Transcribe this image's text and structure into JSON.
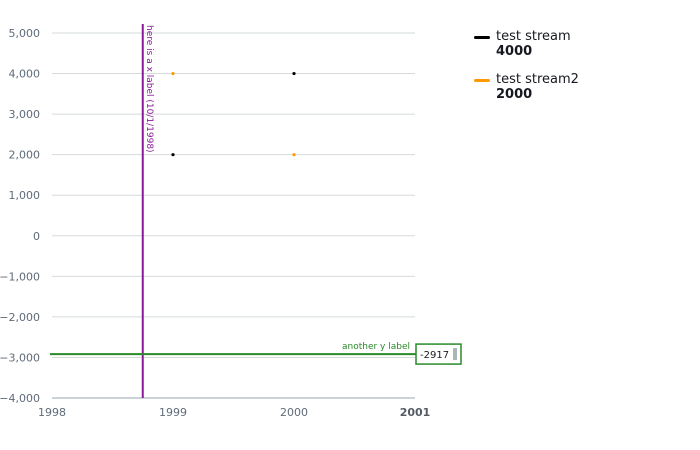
{
  "chart_data": {
    "type": "scatter",
    "xlim": [
      1998,
      2001
    ],
    "ylim": [
      -4000,
      5000
    ],
    "x_ticks": [
      "1998",
      "1999",
      "2000",
      "2001"
    ],
    "y_ticks": [
      "5,000",
      "4,000",
      "3,000",
      "2,000",
      "1,000",
      "0",
      "−1,000",
      "−2,000",
      "−3,000",
      "−4,000"
    ],
    "y_tick_values": [
      5000,
      4000,
      3000,
      2000,
      1000,
      0,
      -1000,
      -2000,
      -3000,
      -4000
    ],
    "grid": true,
    "legend_position": "right",
    "series": [
      {
        "name": "test stream",
        "color": "#000000",
        "legend_value": "4000",
        "points": [
          {
            "x": 1999,
            "y": 2000
          },
          {
            "x": 2000,
            "y": 4000
          }
        ]
      },
      {
        "name": "test stream2",
        "color": "#ff9900",
        "legend_value": "2000",
        "points": [
          {
            "x": 1999,
            "y": 4000
          },
          {
            "x": 2000,
            "y": 2000
          }
        ]
      }
    ],
    "annotations": {
      "vertical": {
        "x": 1998.75,
        "label": "here is a x label (10/1/1998)",
        "color": "#8b1a9b"
      },
      "horizontal": {
        "y": -2917,
        "label": "another y label",
        "value_label": "-2917",
        "color": "#2a8a2a"
      }
    }
  }
}
